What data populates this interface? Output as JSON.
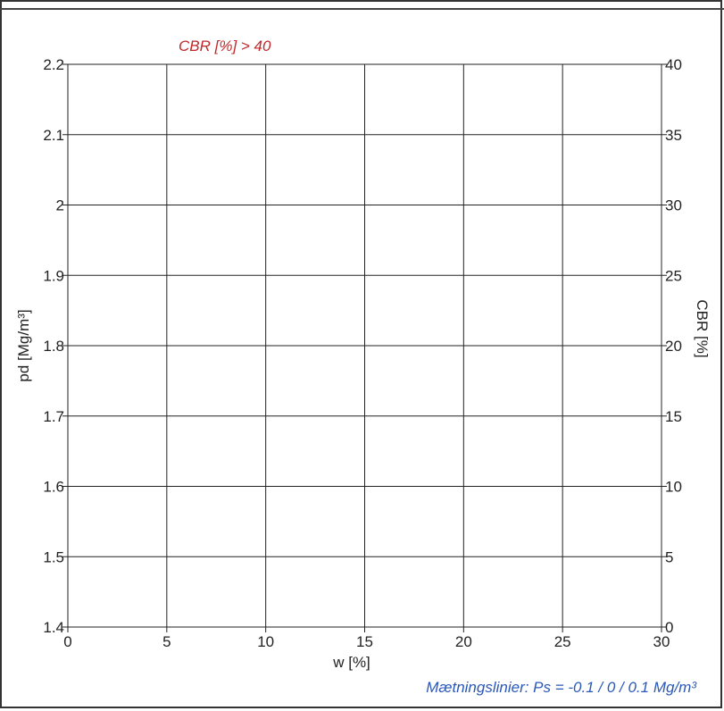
{
  "chart_data": {
    "type": "line",
    "annotation_top": "CBR [%] > 40",
    "annotation_bottom": "Mætningslinier: Ps = -0.1 / 0 / 0.1 Mg/m³",
    "xlabel": "w [%]",
    "ylabel": "pd [Mg/m³]",
    "y2label": "CBR [%]",
    "xlim": [
      0,
      30
    ],
    "ylim": [
      1.4,
      2.2
    ],
    "y2lim": [
      0,
      40
    ],
    "x_ticks": [
      "0",
      "5",
      "10",
      "15",
      "20",
      "25",
      "30"
    ],
    "y_ticks": [
      "1.4",
      "1.5",
      "1.6",
      "1.7",
      "1.8",
      "1.9",
      "2",
      "2.1",
      "2.2"
    ],
    "y2_ticks": [
      "0",
      "5",
      "10",
      "15",
      "20",
      "25",
      "30",
      "35",
      "40"
    ],
    "grid": true,
    "series": []
  },
  "colors": {
    "annotation_top": "#c0282a",
    "annotation_bottom": "#2a58b8",
    "grid": "#222222",
    "axis_text": "#222222",
    "border": "#333333"
  }
}
